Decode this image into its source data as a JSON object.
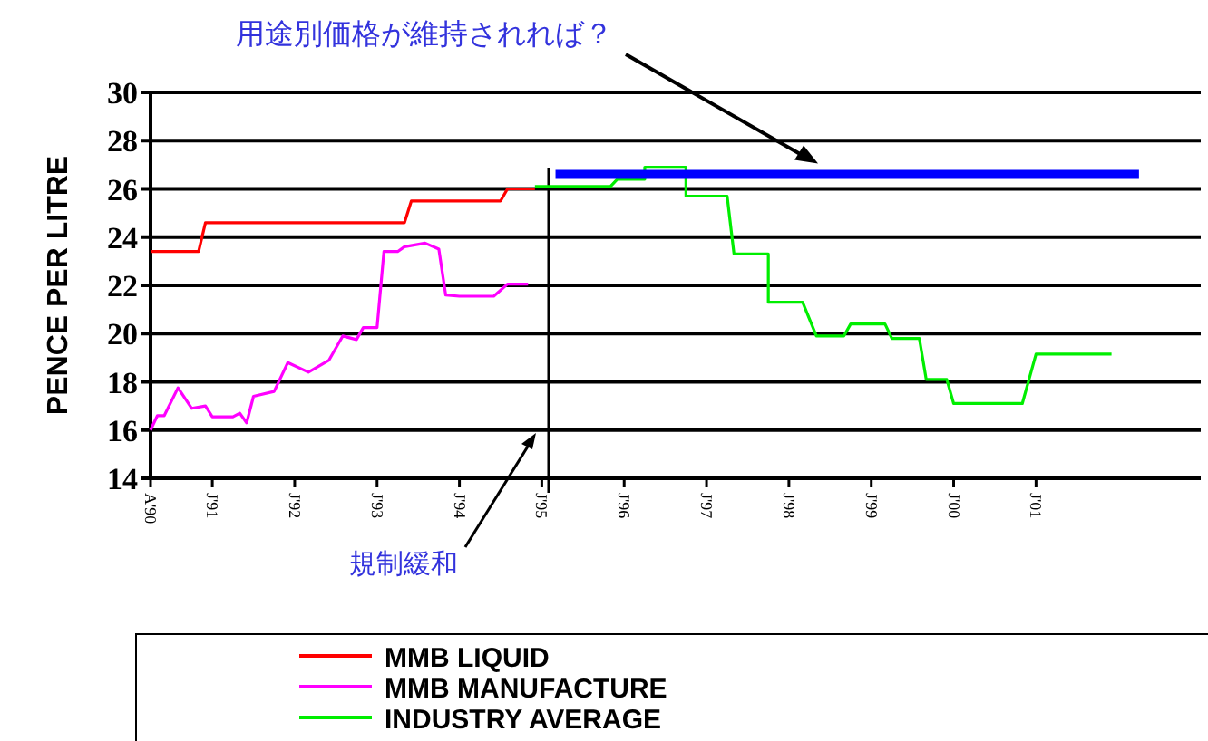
{
  "chart_data": {
    "type": "line",
    "ylabel": "PENCE PER LITRE",
    "xlim": [
      "1990-04",
      "2003-01"
    ],
    "ylim": [
      14,
      30
    ],
    "yticks": [
      14,
      16,
      18,
      20,
      22,
      24,
      26,
      28,
      30
    ],
    "xticks": [
      {
        "value": "1990-04",
        "label": "A'90"
      },
      {
        "value": "1991-01",
        "label": "J'91"
      },
      {
        "value": "1992-01",
        "label": "J'92"
      },
      {
        "value": "1993-01",
        "label": "J'93"
      },
      {
        "value": "1994-01",
        "label": "J'94"
      },
      {
        "value": "1995-01",
        "label": "J'95"
      },
      {
        "value": "1996-01",
        "label": "J'96"
      },
      {
        "value": "1997-01",
        "label": "J'97"
      },
      {
        "value": "1998-01",
        "label": "J'98"
      },
      {
        "value": "1999-01",
        "label": "J'99"
      },
      {
        "value": "2000-01",
        "label": "J'00"
      },
      {
        "value": "2001-01",
        "label": "J'01"
      }
    ],
    "grid": "y",
    "legend": "bottom",
    "marker": "none",
    "series": [
      {
        "name": "MMB LIQUID",
        "color": "#ff0000",
        "x": [
          "1990-04",
          "1990-11",
          "1990-12",
          "1993-05",
          "1993-06",
          "1994-07",
          "1994-08",
          "1994-12"
        ],
        "values": [
          23.4,
          23.4,
          24.6,
          24.6,
          25.5,
          25.5,
          26.0,
          26.0
        ]
      },
      {
        "name": "MMB MANUFACTURE",
        "color": "#ff00ff",
        "x": [
          "1990-04",
          "1990-05",
          "1990-06",
          "1990-08",
          "1990-10",
          "1990-12",
          "1991-01",
          "1991-04",
          "1991-05",
          "1991-06",
          "1991-07",
          "1991-10",
          "1991-12",
          "1992-03",
          "1992-06",
          "1992-08",
          "1992-10",
          "1992-11",
          "1993-01",
          "1993-02",
          "1993-04",
          "1993-05",
          "1993-08",
          "1993-10",
          "1993-11",
          "1994-01",
          "1994-06",
          "1994-08",
          "1994-11"
        ],
        "values": [
          16.0,
          16.6,
          16.6,
          17.75,
          16.9,
          17.0,
          16.55,
          16.55,
          16.7,
          16.3,
          17.4,
          17.6,
          18.8,
          18.4,
          18.9,
          19.9,
          19.75,
          20.25,
          20.25,
          23.4,
          23.4,
          23.6,
          23.75,
          23.5,
          21.6,
          21.55,
          21.55,
          22.05,
          22.05
        ]
      },
      {
        "name": "INDUSTRY AVERAGE",
        "color": "#00ee00",
        "x": [
          "1994-12",
          "1995-11",
          "1995-12",
          "1996-04",
          "1996-04",
          "1996-10",
          "1996-10",
          "1997-04",
          "1997-05",
          "1997-10",
          "1997-10",
          "1998-03",
          "1998-05",
          "1998-09",
          "1998-10",
          "1999-03",
          "1999-04",
          "1999-08",
          "1999-09",
          "1999-12",
          "2000-01",
          "2000-11",
          "2001-01",
          "2001-12"
        ],
        "values": [
          26.1,
          26.1,
          26.4,
          26.4,
          26.9,
          26.9,
          25.7,
          25.7,
          23.3,
          23.3,
          21.3,
          21.3,
          19.9,
          19.9,
          20.4,
          20.4,
          19.8,
          19.8,
          18.1,
          18.1,
          17.1,
          17.1,
          19.15,
          19.15
        ]
      },
      {
        "color": "#0000ff",
        "x": [
          "1995-03",
          "2002-04"
        ],
        "values": [
          26.6,
          26.6
        ]
      }
    ],
    "ref_lines": [
      {
        "axis": "x",
        "value": "1995-02",
        "color": "#000000"
      }
    ],
    "annotations": [
      "用途別価格が維持されれば？",
      "規制緩和"
    ]
  }
}
